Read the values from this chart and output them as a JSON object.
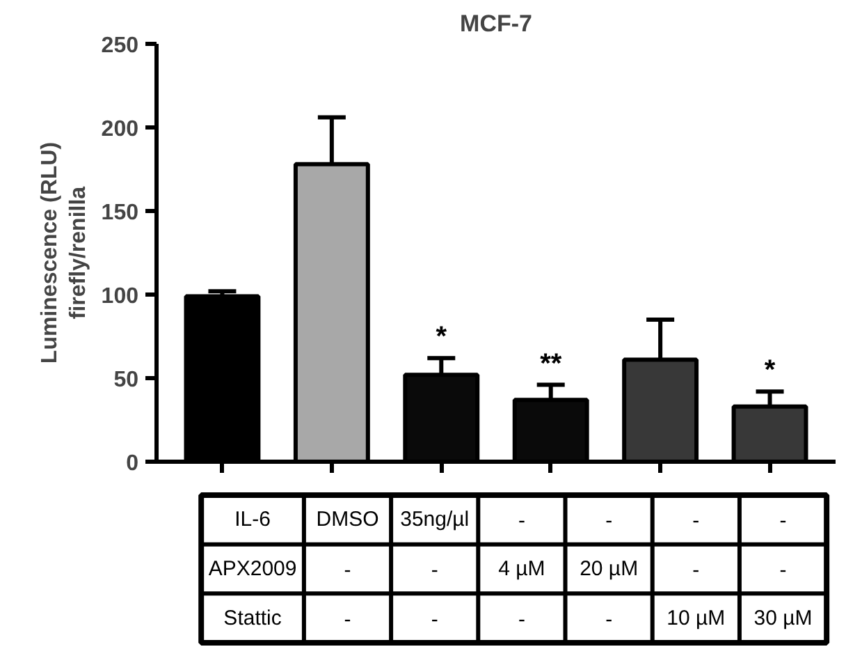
{
  "chart_data": {
    "type": "bar",
    "title": "MCF-7",
    "ylabel": "Luminescence (RLU)\nfirefly/renilla",
    "categories": [
      null,
      null,
      null,
      null,
      null,
      null
    ],
    "values": [
      99,
      178,
      52,
      37,
      61,
      33
    ],
    "errors": [
      3,
      28,
      10,
      9,
      24,
      9
    ],
    "colors": [
      "#000000",
      "#a8a8a8",
      "#0a0a0a",
      "#0a0a0a",
      "#383838",
      "#383838"
    ],
    "value_labels": [
      null,
      null,
      "*",
      "**",
      null,
      "*"
    ],
    "ylim": [
      0,
      250
    ],
    "yticks": [
      0,
      50,
      100,
      150,
      200,
      250
    ],
    "grid": false,
    "annotations": [
      "IL-6",
      "DMSO",
      "35ng/µl",
      "-",
      "-",
      "-",
      "-",
      "APX2009",
      "-",
      "-",
      "4 µM",
      "20 µM",
      "-",
      "-",
      "Stattic",
      "-",
      "-",
      "-",
      "-",
      "10 µM",
      "30 µM"
    ]
  }
}
